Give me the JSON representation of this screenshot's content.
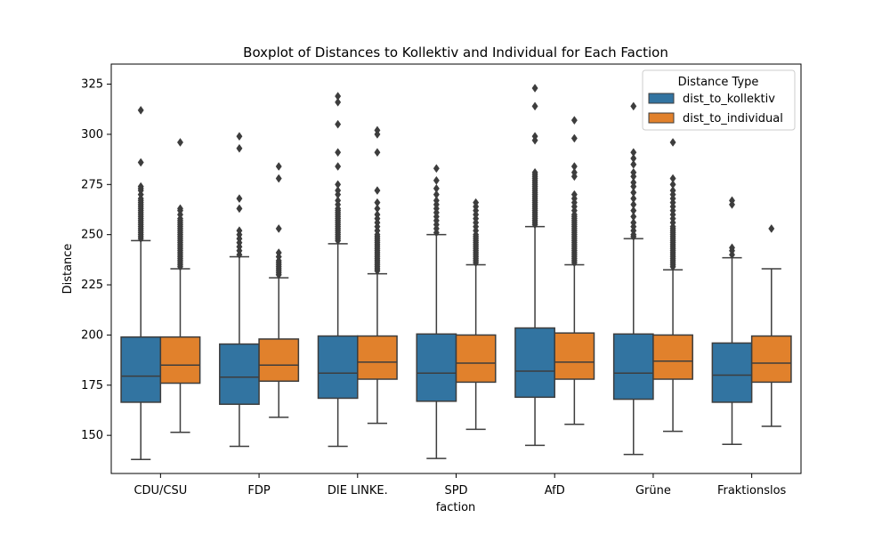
{
  "colors": {
    "dist_to_kollektiv": "#3274a1",
    "dist_to_individual": "#e1812c",
    "box_edge": "#3d3d3d"
  },
  "chart_data": {
    "type": "boxplot",
    "title": "Boxplot of Distances to Kollektiv and Individual for Each Faction",
    "xlabel": "faction",
    "ylabel": "Distance",
    "ylim": [
      131,
      335
    ],
    "yticks": [
      150,
      175,
      200,
      225,
      250,
      275,
      300,
      325
    ],
    "grid": false,
    "legend": {
      "title": "Distance Type",
      "placement": "top-right",
      "entries": [
        "dist_to_kollektiv",
        "dist_to_individual"
      ]
    },
    "categories": [
      "CDU/CSU",
      "FDP",
      "DIE LINKE.",
      "SPD",
      "AfD",
      "Grüne",
      "Fraktionslos"
    ],
    "series": [
      {
        "name": "dist_to_kollektiv",
        "boxes": [
          {
            "whislo": 138,
            "q1": 166.5,
            "med": 179.5,
            "q3": 199,
            "whishi": 247,
            "fliers": [
              248,
              249,
              250,
              251,
              252,
              253,
              254,
              255,
              256,
              257,
              258,
              259,
              260,
              261,
              262,
              263,
              264,
              265,
              266,
              267,
              268,
              270,
              272,
              273,
              274,
              286,
              312
            ]
          },
          {
            "whislo": 144.5,
            "q1": 165.5,
            "med": 179,
            "q3": 195.5,
            "whishi": 239,
            "fliers": [
              240,
              242,
              244,
              246,
              248,
              250,
              252,
              263,
              268,
              293,
              299
            ]
          },
          {
            "whislo": 144.5,
            "q1": 168.5,
            "med": 181,
            "q3": 199.5,
            "whishi": 245.5,
            "fliers": [
              247,
              248,
              249,
              250,
              251,
              252,
              253,
              254,
              255,
              256,
              257,
              258,
              259,
              260,
              261,
              262,
              263,
              265,
              267,
              270,
              272,
              275,
              284,
              291,
              305,
              316,
              319
            ]
          },
          {
            "whislo": 138.5,
            "q1": 167,
            "med": 181,
            "q3": 200.5,
            "whishi": 250,
            "fliers": [
              251,
              253,
              255,
              257,
              259,
              261,
              263,
              265,
              267,
              270,
              273,
              277,
              283
            ]
          },
          {
            "whislo": 145,
            "q1": 169,
            "med": 182,
            "q3": 203.5,
            "whishi": 254,
            "fliers": [
              255,
              256,
              257,
              258,
              259,
              260,
              261,
              262,
              263,
              264,
              265,
              266,
              267,
              268,
              269,
              270,
              271,
              272,
              273,
              274,
              275,
              276,
              277,
              278,
              279,
              280,
              281,
              297,
              299,
              314,
              323
            ]
          },
          {
            "whislo": 140.5,
            "q1": 168,
            "med": 181,
            "q3": 200.5,
            "whishi": 248,
            "fliers": [
              249,
              250,
              252,
              254,
              256,
              259,
              262,
              265,
              268,
              271,
              274,
              276,
              279,
              281,
              285,
              288,
              291,
              314
            ]
          },
          {
            "whislo": 145.5,
            "q1": 166.5,
            "med": 180,
            "q3": 196,
            "whishi": 238.5,
            "fliers": [
              240,
              242,
              243.5,
              265,
              267
            ]
          }
        ]
      },
      {
        "name": "dist_to_individual",
        "boxes": [
          {
            "whislo": 151.5,
            "q1": 176,
            "med": 185,
            "q3": 199,
            "whishi": 233,
            "fliers": [
              234,
              235,
              236,
              237,
              238,
              239,
              240,
              241,
              242,
              243,
              244,
              245,
              246,
              247,
              248,
              249,
              250,
              251,
              252,
              253,
              254,
              255,
              256,
              257,
              258,
              260,
              262,
              263,
              296
            ]
          },
          {
            "whislo": 159,
            "q1": 177,
            "med": 185,
            "q3": 198,
            "whishi": 228.5,
            "fliers": [
              230,
              231,
              232,
              233,
              234,
              235,
              236,
              237,
              239,
              241,
              253,
              278,
              284
            ]
          },
          {
            "whislo": 156,
            "q1": 178,
            "med": 186.5,
            "q3": 199.5,
            "whishi": 230.5,
            "fliers": [
              232,
              233,
              234,
              235,
              236,
              237,
              238,
              239,
              240,
              241,
              242,
              243,
              244,
              245,
              246,
              247,
              248,
              249,
              250,
              252,
              254,
              256,
              258,
              260,
              263,
              266,
              272,
              291,
              300,
              302
            ]
          },
          {
            "whislo": 153,
            "q1": 176.5,
            "med": 186,
            "q3": 200,
            "whishi": 235,
            "fliers": [
              236,
              237,
              238,
              239,
              240,
              241,
              242,
              243,
              244,
              245,
              246,
              247,
              248,
              249,
              250,
              252,
              254,
              256,
              258,
              260,
              262,
              264,
              266
            ]
          },
          {
            "whislo": 155.5,
            "q1": 178,
            "med": 186.5,
            "q3": 201,
            "whishi": 235,
            "fliers": [
              236,
              237,
              238,
              239,
              240,
              241,
              242,
              243,
              244,
              245,
              246,
              247,
              248,
              249,
              250,
              251,
              252,
              253,
              254,
              255,
              256,
              257,
              258,
              259,
              260,
              262,
              264,
              266,
              268,
              270,
              279,
              281,
              284,
              298,
              307
            ]
          },
          {
            "whislo": 152,
            "q1": 178,
            "med": 187,
            "q3": 200,
            "whishi": 232.5,
            "fliers": [
              234,
              235,
              236,
              237,
              238,
              239,
              240,
              241,
              242,
              243,
              244,
              245,
              246,
              247,
              248,
              249,
              250,
              251,
              252,
              253,
              254,
              256,
              258,
              260,
              262,
              264,
              266,
              268,
              270,
              272,
              275,
              278,
              296
            ]
          },
          {
            "whislo": 154.5,
            "q1": 176.5,
            "med": 186,
            "q3": 199.5,
            "whishi": 233,
            "fliers": [
              253
            ]
          }
        ]
      }
    ]
  }
}
